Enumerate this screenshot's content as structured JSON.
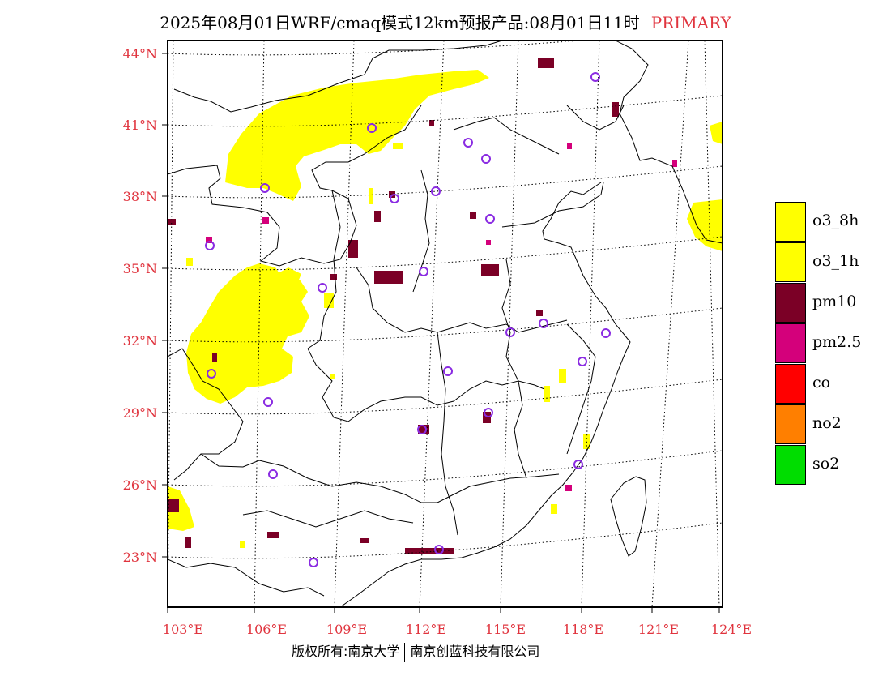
{
  "title": {
    "main": "2025年08月01日WRF/cmaq模式12km预报产品:08月01日11时",
    "tag": "PRIMARY"
  },
  "axes": {
    "lat_labels": [
      "44°N",
      "41°N",
      "38°N",
      "35°N",
      "32°N",
      "29°N",
      "26°N",
      "23°N"
    ],
    "lon_labels": [
      "103°E",
      "106°E",
      "109°E",
      "112°E",
      "115°E",
      "118°E",
      "121°E",
      "124°E"
    ],
    "label_color": "#e0343e"
  },
  "legend": {
    "items": [
      {
        "label": "o3_8h",
        "color": "#ffff00"
      },
      {
        "label": "o3_1h",
        "color": "#ffff00"
      },
      {
        "label": "pm10",
        "color": "#7b0026"
      },
      {
        "label": "pm2.5",
        "color": "#d4007b"
      },
      {
        "label": "co",
        "color": "#ff0000"
      },
      {
        "label": "no2",
        "color": "#ff7f00"
      },
      {
        "label": "so2",
        "color": "#00dd00"
      }
    ]
  },
  "footer": {
    "left": "版权所有:南京大学",
    "right": "南京创蓝科技有限公司"
  },
  "colors": {
    "o3": "#ffff00",
    "pm10": "#7b0026",
    "pm25": "#d4007b",
    "station": "#8a2be2"
  }
}
